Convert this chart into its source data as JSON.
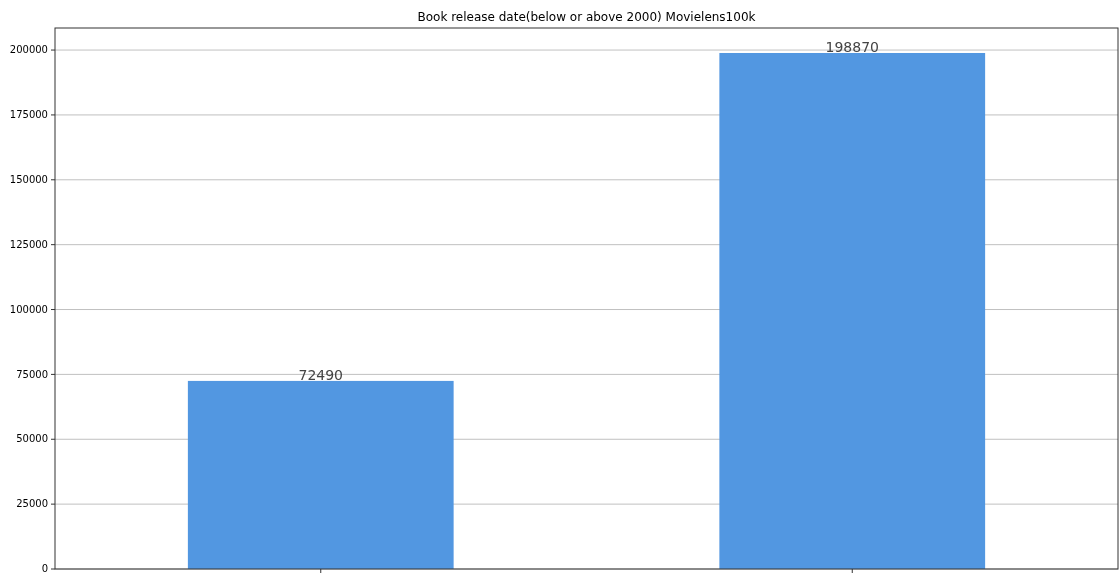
{
  "chart_data": {
    "type": "bar",
    "title": "Book release date(below or above 2000) Movielens100k",
    "categories": [
      null,
      null
    ],
    "values": [
      72490,
      198870
    ],
    "color": "#5297e1",
    "ylim": [
      0,
      208500
    ],
    "yticks": [
      0,
      25000,
      50000,
      75000,
      100000,
      125000,
      150000,
      175000,
      200000
    ],
    "grid": "y",
    "data_labels": true
  }
}
